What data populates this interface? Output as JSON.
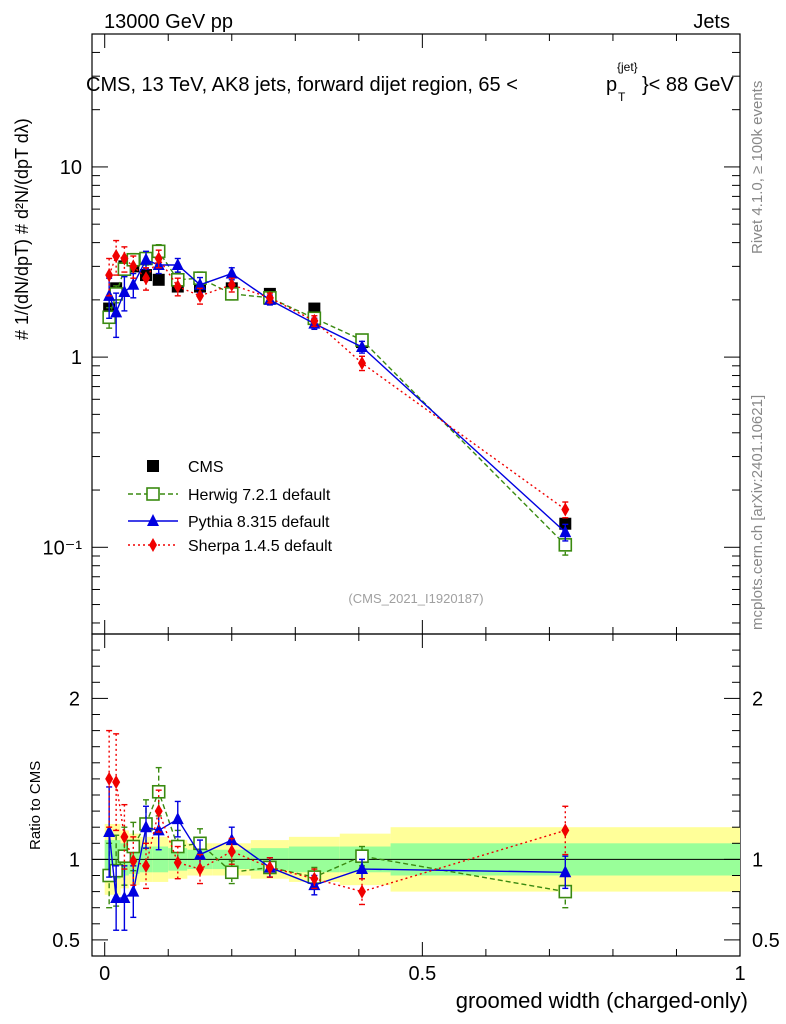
{
  "header": {
    "left": "13000 GeV pp",
    "right": "Jets",
    "title_main": "CMS, 13 TeV, AK8 jets, forward dijet region, 65 <",
    "title_p": "p",
    "title_sup": "{jet}",
    "title_sub": "T",
    "title_end": "}< 88 GeV",
    "ref": "(CMS_2021_I1920187)",
    "side_rivet": "Rivet 4.1.0, ≥ 100k events",
    "side_mcplots": "mcplots.cern.ch [arXiv:2401.10621]"
  },
  "axes": {
    "ylabel_top": "# 1/(dN/dpT) # d²N/(dpT dλ)",
    "ylabel_ratio": "Ratio to CMS",
    "xlabel": "groomed width (charged-only)",
    "x_ticks": [
      "0",
      "0.5",
      "1"
    ],
    "y_ticks_top": [
      "10⁻¹",
      "1",
      "10"
    ],
    "y_ticks_ratio": [
      "0.5",
      "1",
      "2"
    ]
  },
  "colors": {
    "cms": "#000000",
    "herwig": "#3a8a10",
    "pythia": "#0000e0",
    "sherpa": "#f00000",
    "band_inner": "#99ff99",
    "band_outer": "#ffff99"
  },
  "chart_data": {
    "type": "line",
    "title": "CMS, 13 TeV, AK8 jets, forward dijet region, 65 < pT(jet) < 88 GeV",
    "xlabel": "groomed width (charged-only)",
    "ylabel": "1/(dN/dpT) d²N/(dpT dλ)",
    "xlim": [
      -0.02,
      1.0
    ],
    "ylim": [
      0.035,
      50
    ],
    "yscale": "log",
    "ratio_ylim": [
      0.4,
      2.4
    ],
    "x": [
      0.007,
      0.018,
      0.031,
      0.045,
      0.065,
      0.085,
      0.115,
      0.15,
      0.2,
      0.26,
      0.33,
      0.405,
      0.725
    ],
    "series": [
      {
        "name": "CMS",
        "marker": "square",
        "values": [
          1.8,
          2.3,
          3.0,
          3.0,
          2.7,
          2.55,
          2.35,
          2.35,
          2.3,
          2.15,
          1.8,
          1.2,
          0.133
        ]
      },
      {
        "name": "Herwig 7.2.1 default",
        "marker": "open-square",
        "line": "dashed",
        "values": [
          1.62,
          2.15,
          2.9,
          3.25,
          3.3,
          3.6,
          2.55,
          2.6,
          2.15,
          2.05,
          1.6,
          1.23,
          0.103
        ],
        "err": [
          0.2,
          0.22,
          0.25,
          0.25,
          0.25,
          0.3,
          0.22,
          0.2,
          0.15,
          0.12,
          0.1,
          0.08,
          0.012
        ],
        "ratio": [
          0.9,
          0.93,
          1.02,
          1.08,
          1.22,
          1.42,
          1.08,
          1.1,
          0.92,
          0.95,
          0.89,
          1.02,
          0.8
        ],
        "ratio_err": [
          0.2,
          0.22,
          0.18,
          0.15,
          0.15,
          0.15,
          0.1,
          0.09,
          0.07,
          0.06,
          0.06,
          0.06,
          0.1
        ]
      },
      {
        "name": "Pythia 8.315 default",
        "marker": "triangle",
        "line": "solid",
        "values": [
          2.1,
          1.72,
          2.2,
          2.4,
          3.25,
          3.05,
          3.05,
          2.4,
          2.75,
          2.0,
          1.5,
          1.13,
          0.12
        ],
        "err": [
          0.5,
          0.45,
          0.45,
          0.35,
          0.35,
          0.3,
          0.25,
          0.22,
          0.2,
          0.12,
          0.1,
          0.08,
          0.012
        ],
        "ratio": [
          1.17,
          0.76,
          0.76,
          0.8,
          1.2,
          1.18,
          1.25,
          1.03,
          1.12,
          0.95,
          0.84,
          0.94,
          0.92
        ],
        "ratio_err": [
          0.28,
          0.2,
          0.2,
          0.16,
          0.13,
          0.12,
          0.11,
          0.09,
          0.08,
          0.06,
          0.06,
          0.06,
          0.1
        ]
      },
      {
        "name": "Sherpa 1.4.5 default",
        "marker": "diamond",
        "line": "dotted",
        "values": [
          2.7,
          3.4,
          3.3,
          3.0,
          2.6,
          3.3,
          2.35,
          2.1,
          2.4,
          2.05,
          1.55,
          0.93,
          0.158
        ],
        "err": [
          0.6,
          0.7,
          0.5,
          0.4,
          0.35,
          0.35,
          0.25,
          0.2,
          0.2,
          0.12,
          0.1,
          0.08,
          0.015
        ],
        "ratio": [
          1.5,
          1.48,
          1.14,
          0.99,
          0.96,
          1.3,
          0.98,
          0.94,
          1.05,
          0.95,
          0.88,
          0.8,
          1.18
        ],
        "ratio_err": [
          0.3,
          0.3,
          0.2,
          0.15,
          0.14,
          0.13,
          0.1,
          0.09,
          0.08,
          0.06,
          0.06,
          0.08,
          0.15
        ]
      }
    ],
    "data_err_bins": [
      {
        "x0": 0.0,
        "x1": 0.013,
        "inner": 0.12,
        "outer": 0.22
      },
      {
        "x0": 0.013,
        "x1": 0.025,
        "inner": 0.12,
        "outer": 0.22
      },
      {
        "x0": 0.025,
        "x1": 0.038,
        "inner": 0.1,
        "outer": 0.18
      },
      {
        "x0": 0.038,
        "x1": 0.055,
        "inner": 0.09,
        "outer": 0.16
      },
      {
        "x0": 0.055,
        "x1": 0.075,
        "inner": 0.08,
        "outer": 0.14
      },
      {
        "x0": 0.075,
        "x1": 0.1,
        "inner": 0.08,
        "outer": 0.14
      },
      {
        "x0": 0.1,
        "x1": 0.13,
        "inner": 0.07,
        "outer": 0.12
      },
      {
        "x0": 0.13,
        "x1": 0.17,
        "inner": 0.06,
        "outer": 0.1
      },
      {
        "x0": 0.17,
        "x1": 0.23,
        "inner": 0.06,
        "outer": 0.1
      },
      {
        "x0": 0.23,
        "x1": 0.29,
        "inner": 0.07,
        "outer": 0.12
      },
      {
        "x0": 0.29,
        "x1": 0.37,
        "inner": 0.08,
        "outer": 0.14
      },
      {
        "x0": 0.37,
        "x1": 0.45,
        "inner": 0.08,
        "outer": 0.16
      },
      {
        "x0": 0.45,
        "x1": 1.0,
        "inner": 0.1,
        "outer": 0.2
      }
    ]
  }
}
